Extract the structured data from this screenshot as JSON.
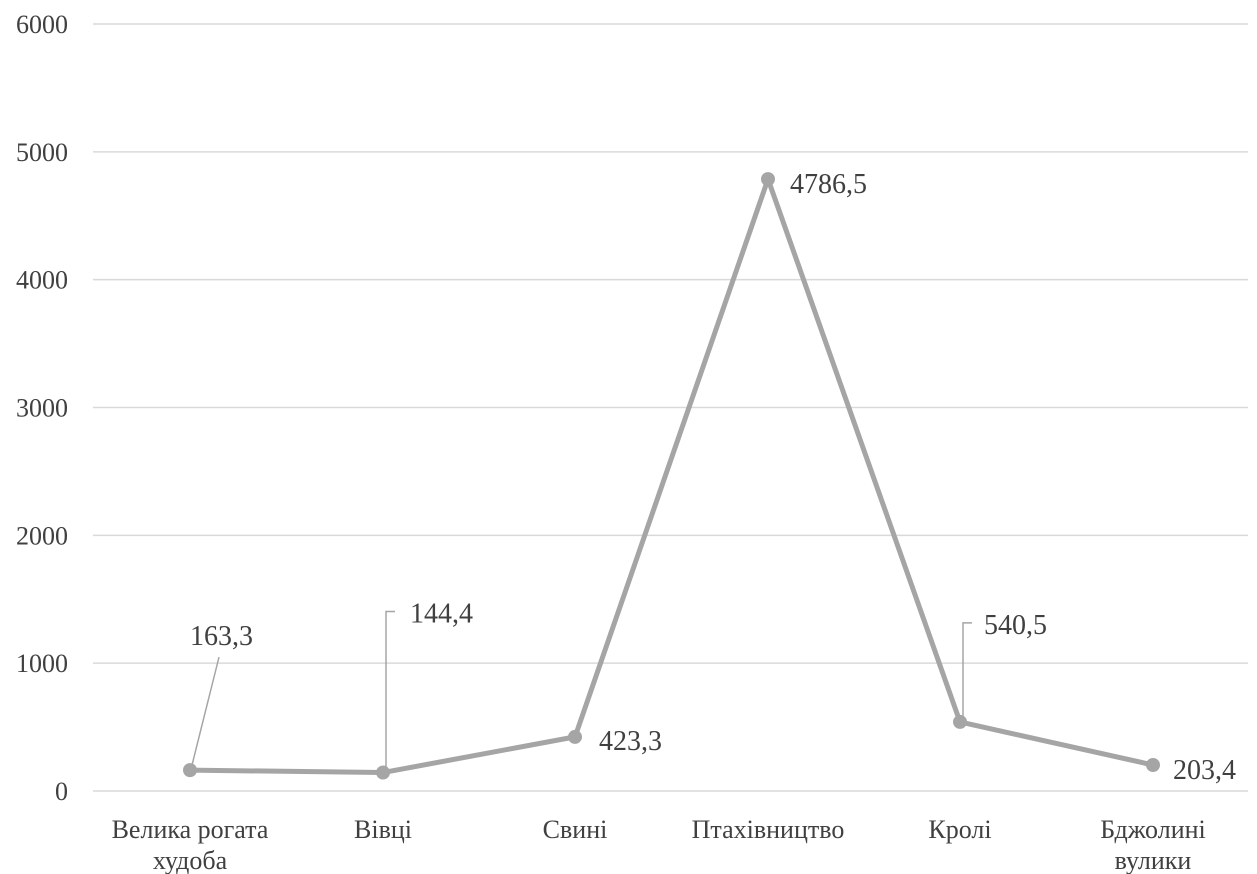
{
  "chart_data": {
    "type": "line",
    "categories": [
      [
        "Велика рогата",
        "худоба"
      ],
      [
        "Вівці"
      ],
      [
        "Свині"
      ],
      [
        "Птахівництво"
      ],
      [
        "Кролі"
      ],
      [
        "Бджолині",
        "вулики"
      ]
    ],
    "values": [
      163.3,
      144.4,
      423.3,
      4786.5,
      540.5,
      203.4
    ],
    "data_labels": [
      "163,3",
      "144,4",
      "423,3",
      "4786,5",
      "540,5",
      "203,4"
    ],
    "y_ticks": [
      {
        "value": 0,
        "label": "0"
      },
      {
        "value": 1000,
        "label": "1000"
      },
      {
        "value": 2000,
        "label": "2000"
      },
      {
        "value": 3000,
        "label": "3000"
      },
      {
        "value": 4000,
        "label": "4000"
      },
      {
        "value": 5000,
        "label": "5000"
      },
      {
        "value": 6000,
        "label": "6000"
      }
    ],
    "ylim": [
      0,
      6000
    ],
    "title": "",
    "xlabel": "",
    "ylabel": "",
    "grid": "horizontal",
    "legend": "none",
    "colors": {
      "line": "#a5a5a5",
      "grid": "#d9d9d9",
      "leader": "#a5a5a5",
      "text": "#404040"
    }
  }
}
